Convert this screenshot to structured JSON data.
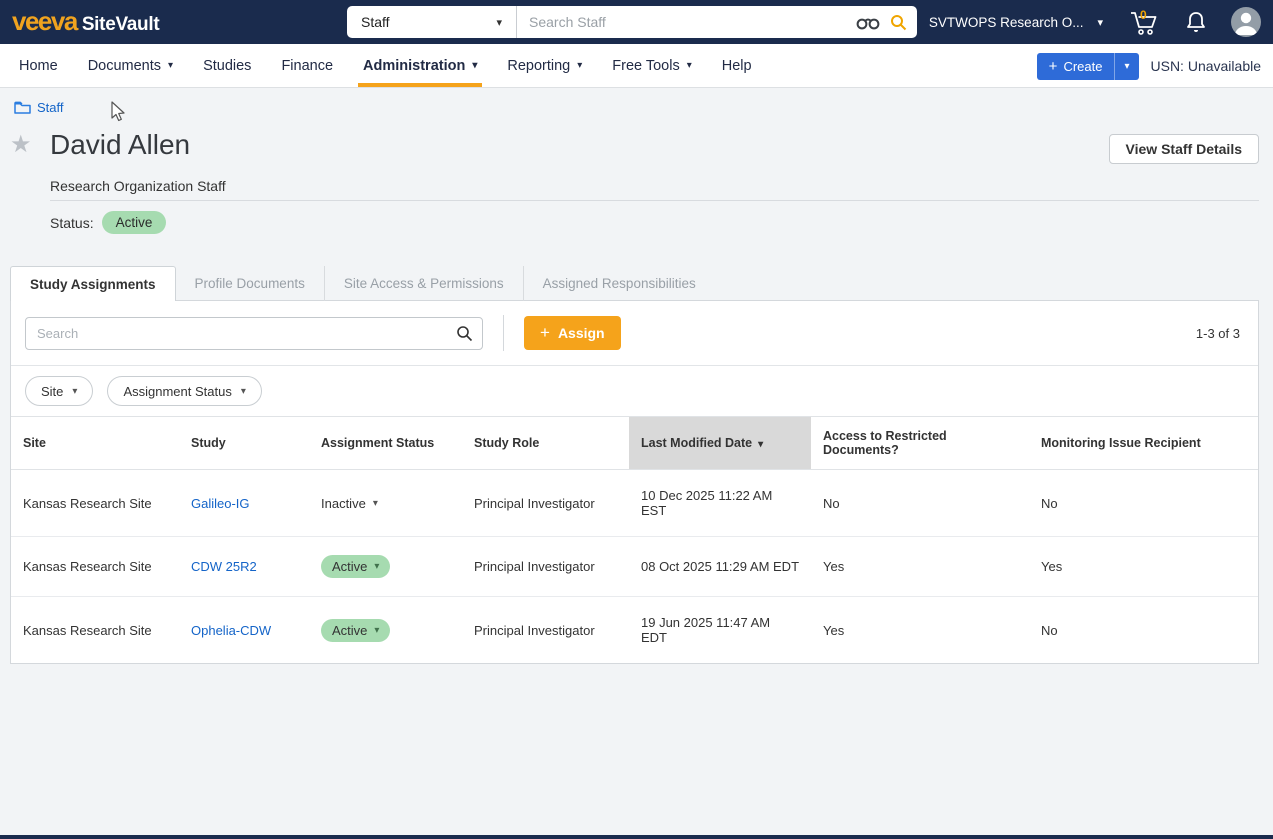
{
  "icons": {
    "plus": "+",
    "caret_down": "▾",
    "star": "★"
  },
  "colors": {
    "topbar_bg": "#1a2b4d",
    "accent_orange": "#f5a31b",
    "logo_orange": "#f0a31f",
    "create_blue": "#2e6bd8",
    "link_blue": "#1464c8",
    "status_green_bg": "#a6dbb0",
    "sorted_header_bg": "#d9d9d9"
  },
  "topbar": {
    "logo_veeva": "veeva",
    "logo_sitevault": "SiteVault",
    "scope_selected": "Staff",
    "search_placeholder": "Search Staff",
    "org_selected": "SVTWOPS Research O...",
    "cart_count": "0"
  },
  "nav": {
    "items": [
      {
        "label": "Home",
        "dropdown": false,
        "active": false
      },
      {
        "label": "Documents",
        "dropdown": true,
        "active": false
      },
      {
        "label": "Studies",
        "dropdown": false,
        "active": false
      },
      {
        "label": "Finance",
        "dropdown": false,
        "active": false
      },
      {
        "label": "Administration",
        "dropdown": true,
        "active": true
      },
      {
        "label": "Reporting",
        "dropdown": true,
        "active": false
      },
      {
        "label": "Free Tools",
        "dropdown": true,
        "active": false
      },
      {
        "label": "Help",
        "dropdown": false,
        "active": false
      }
    ],
    "create_label": "Create",
    "usn_label": "USN: Unavailable"
  },
  "breadcrumb": {
    "label": "Staff"
  },
  "page": {
    "title": "David Allen",
    "subtitle": "Research Organization Staff",
    "status_label": "Status:",
    "status_value": "Active",
    "view_details_label": "View Staff Details"
  },
  "tabs": [
    {
      "label": "Study Assignments",
      "active": true
    },
    {
      "label": "Profile Documents",
      "active": false
    },
    {
      "label": "Site Access & Permissions",
      "active": false
    },
    {
      "label": "Assigned Responsibilities",
      "active": false
    }
  ],
  "toolbar": {
    "search_placeholder": "Search",
    "assign_label": "Assign",
    "range_label": "1-3 of 3"
  },
  "filters": [
    {
      "label": "Site"
    },
    {
      "label": "Assignment Status"
    }
  ],
  "table": {
    "columns": [
      {
        "label": "Site",
        "sorted": false
      },
      {
        "label": "Study",
        "sorted": false
      },
      {
        "label": "Assignment Status",
        "sorted": false
      },
      {
        "label": "Study Role",
        "sorted": false
      },
      {
        "label": "Last Modified Date",
        "sorted": true
      },
      {
        "label": "Access to Restricted Documents?",
        "sorted": false
      },
      {
        "label": "Monitoring Issue Recipient",
        "sorted": false
      }
    ],
    "rows": [
      {
        "site": "Kansas Research Site",
        "study": "Galileo-IG",
        "status": "Inactive",
        "status_style": "plain",
        "role": "Principal Investigator",
        "modified": "10 Dec 2025 11:22 AM EST",
        "restricted": "No",
        "monitoring": "No"
      },
      {
        "site": "Kansas Research Site",
        "study": "CDW 25R2",
        "status": "Active",
        "status_style": "pill",
        "role": "Principal Investigator",
        "modified": "08 Oct 2025 11:29 AM EDT",
        "restricted": "Yes",
        "monitoring": "Yes"
      },
      {
        "site": "Kansas Research Site",
        "study": "Ophelia-CDW",
        "status": "Active",
        "status_style": "pill",
        "role": "Principal Investigator",
        "modified": "19 Jun 2025 11:47 AM EDT",
        "restricted": "Yes",
        "monitoring": "No"
      }
    ]
  }
}
